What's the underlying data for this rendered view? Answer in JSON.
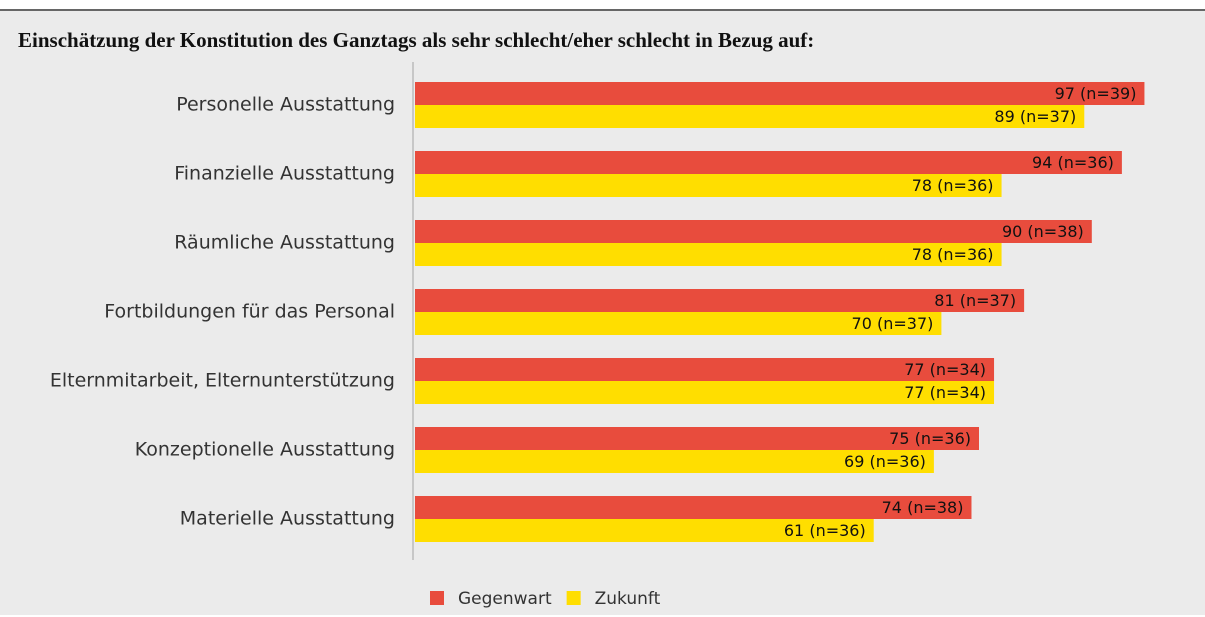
{
  "chart_data": {
    "type": "barh",
    "title": "Einschätzung der Konstitution des Ganztags als sehr schlecht/eher schlecht in Bezug auf:",
    "categories": [
      "Personelle Ausstattung",
      "Finanzielle Ausstattung",
      "Räumliche Ausstattung",
      "Fortbildungen für das Personal",
      "Elternmitarbeit, Elternunterstützung",
      "Konzeptionelle Ausstattung",
      "Materielle Ausstattung"
    ],
    "series": [
      {
        "name": "Gegenwart",
        "color": "#e84c3d",
        "values": [
          97,
          94,
          90,
          81,
          77,
          75,
          74
        ],
        "value_labels": [
          "97 (n=39)",
          "94 (n=36)",
          "90 (n=38)",
          "81 (n=37)",
          "77 (n=34)",
          "75 (n=36)",
          "74 (n=38)"
        ]
      },
      {
        "name": "Zukunft",
        "color": "#ffde00",
        "values": [
          89,
          78,
          78,
          70,
          77,
          69,
          61
        ],
        "value_labels": [
          "89 (n=37)",
          "78 (n=36)",
          "78 (n=36)",
          "70 (n=37)",
          "77 (n=34)",
          "69 (n=36)",
          "61 (n=36)"
        ]
      }
    ],
    "xlim": [
      0,
      100
    ],
    "legend": "bottom"
  }
}
